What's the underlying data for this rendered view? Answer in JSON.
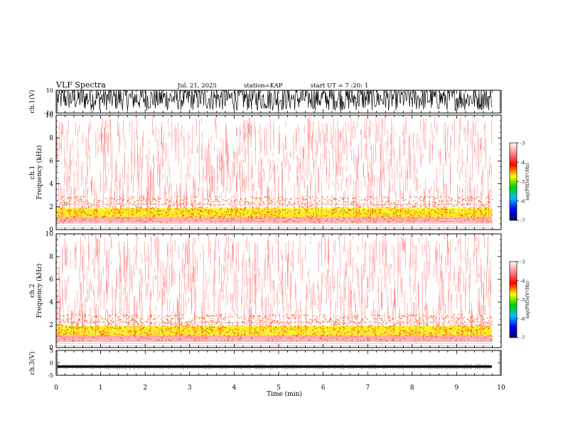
{
  "header": {
    "title": "VLF Spectra",
    "date": "Jul. 21, 2025",
    "station": "station=KAP",
    "start": "start UT =  7 :20: 1"
  },
  "colorbar": {
    "label": "log(PSD)(V²/Hz)",
    "ticks": [
      "-3",
      "-4",
      "-5",
      "-6",
      "-7"
    ],
    "range": [
      -7,
      -3
    ],
    "colors": [
      "#000060",
      "#0000ff",
      "#00c0ff",
      "#00d000",
      "#ffff00",
      "#ff0000",
      "#ff8080",
      "#ffffff"
    ]
  },
  "chart_data": [
    {
      "type": "line",
      "name": "ch1-waveform",
      "ylabel": "ch.1(V)",
      "ylim": [
        -10,
        10
      ],
      "yticks": [
        "10",
        "-10"
      ],
      "xlim": [
        0,
        10
      ],
      "description_values": {
        "typical_low": -6,
        "typical_high": 10
      }
    },
    {
      "type": "heatmap",
      "name": "ch1-spectrogram",
      "ylabel": "ch.1 Frequency (kHz)",
      "ylabel_top": "ch.1",
      "ylabel_bottom": "Frequency (kHz)",
      "ylim": [
        0,
        10
      ],
      "yticks": [
        "0",
        "2",
        "4",
        "6",
        "8",
        "10"
      ],
      "xlim": [
        0,
        10
      ],
      "bands": [
        {
          "from": 0.0,
          "to": 0.6,
          "level": -3.2
        },
        {
          "from": 0.6,
          "to": 1.0,
          "level": -3.8
        },
        {
          "from": 1.0,
          "to": 1.8,
          "level": -4.1
        },
        {
          "from": 1.8,
          "to": 2.9,
          "level": -3.6
        },
        {
          "from": 2.9,
          "to": 10.0,
          "level": -3.4
        }
      ]
    },
    {
      "type": "heatmap",
      "name": "ch2-spectrogram",
      "ylabel": "ch.2 Frequency (kHz)",
      "ylabel_top": "ch.2",
      "ylabel_bottom": "Frequency (kHz)",
      "ylim": [
        0,
        10
      ],
      "yticks": [
        "0",
        "2",
        "4",
        "6",
        "8",
        "10"
      ],
      "xlim": [
        0,
        10
      ],
      "bands": [
        {
          "from": 0.0,
          "to": 0.5,
          "level": -3.2
        },
        {
          "from": 0.5,
          "to": 1.0,
          "level": -3.8
        },
        {
          "from": 1.0,
          "to": 1.9,
          "level": -4.1
        },
        {
          "from": 1.9,
          "to": 2.9,
          "level": -3.6
        },
        {
          "from": 2.9,
          "to": 10.0,
          "level": -3.2
        }
      ]
    },
    {
      "type": "line",
      "name": "ch3-waveform",
      "ylabel": "ch.3(V)",
      "ylim": [
        -5,
        5
      ],
      "yticks": [
        "5",
        "0",
        "-5"
      ],
      "xlim": [
        0,
        10
      ],
      "description_values": {
        "baseline": -1.5
      }
    }
  ],
  "xaxis": {
    "label": "Time (min)",
    "ticks": [
      "0",
      "1",
      "2",
      "3",
      "4",
      "5",
      "6",
      "7",
      "8",
      "9",
      "10"
    ],
    "range": [
      0,
      10
    ]
  }
}
